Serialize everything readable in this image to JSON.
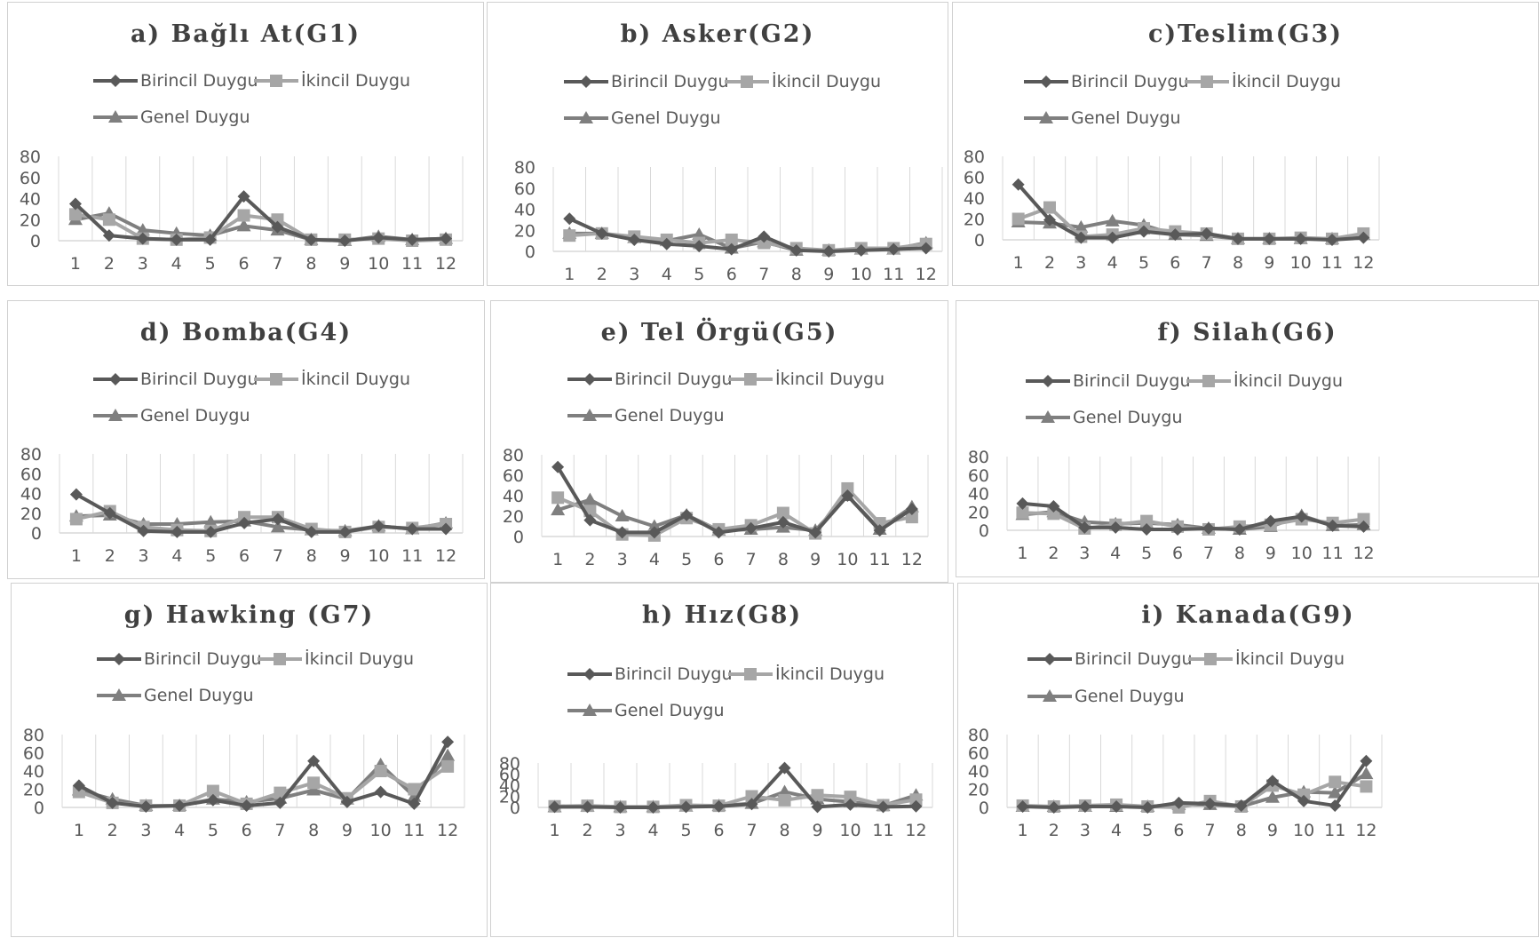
{
  "legend": {
    "primary": "Birincil Duygu",
    "secondary": "İkincil Duygu",
    "overall": "Genel Duygu"
  },
  "colors": {
    "primary": "#595959",
    "secondary": "#A6A6A6",
    "overall": "#7F7F7F",
    "grid": "#D9D9D9",
    "axis_text": "#595959"
  },
  "chart_data": [
    {
      "type": "line",
      "title": "a) Bağlı At(G1)",
      "categories": [
        "1",
        "2",
        "3",
        "4",
        "5",
        "6",
        "7",
        "8",
        "9",
        "10",
        "11",
        "12"
      ],
      "y_ticks": [
        "0",
        "20",
        "40",
        "60",
        "80"
      ],
      "ylim": [
        0,
        80
      ],
      "series": [
        {
          "name": "Birincil Duygu",
          "values": [
            35,
            5,
            2,
            1,
            1,
            42,
            13,
            1,
            0,
            3,
            1,
            2
          ]
        },
        {
          "name": "İkincil Duygu",
          "values": [
            25,
            20,
            2,
            1,
            3,
            24,
            20,
            1,
            1,
            2,
            0,
            1
          ]
        },
        {
          "name": "Genel Duygu",
          "values": [
            20,
            26,
            10,
            7,
            5,
            14,
            10,
            1,
            0,
            4,
            1,
            2
          ]
        }
      ]
    },
    {
      "type": "line",
      "title": "b) Asker(G2)",
      "categories": [
        "1",
        "2",
        "3",
        "4",
        "5",
        "6",
        "7",
        "8",
        "9",
        "10",
        "11",
        "12"
      ],
      "y_ticks": [
        "0",
        "20",
        "40",
        "60",
        "80"
      ],
      "ylim": [
        0,
        80
      ],
      "series": [
        {
          "name": "Birincil Duygu",
          "values": [
            31,
            17,
            11,
            7,
            5,
            2,
            14,
            1,
            0,
            1,
            2,
            3
          ]
        },
        {
          "name": "İkincil Duygu",
          "values": [
            15,
            17,
            14,
            11,
            8,
            11,
            8,
            3,
            1,
            3,
            3,
            7
          ]
        },
        {
          "name": "Genel Duygu",
          "values": [
            17,
            17,
            13,
            10,
            16,
            3,
            9,
            1,
            1,
            2,
            2,
            8
          ]
        }
      ]
    },
    {
      "type": "line",
      "title": "c)Teslim(G3)",
      "categories": [
        "1",
        "2",
        "3",
        "4",
        "5",
        "6",
        "7",
        "8",
        "9",
        "10",
        "11",
        "12"
      ],
      "y_ticks": [
        "0",
        "20",
        "40",
        "60",
        "80"
      ],
      "ylim": [
        0,
        80
      ],
      "series": [
        {
          "name": "Birincil Duygu",
          "values": [
            53,
            19,
            2,
            2,
            8,
            5,
            6,
            1,
            1,
            1,
            0,
            2
          ]
        },
        {
          "name": "İkincil Duygu",
          "values": [
            20,
            31,
            3,
            5,
            11,
            8,
            6,
            1,
            1,
            2,
            1,
            6
          ]
        },
        {
          "name": "Genel Duygu",
          "values": [
            17,
            16,
            12,
            18,
            14,
            5,
            4,
            1,
            1,
            1,
            1,
            5
          ]
        }
      ]
    },
    {
      "type": "line",
      "title": "d) Bomba(G4)",
      "categories": [
        "1",
        "2",
        "3",
        "4",
        "5",
        "6",
        "7",
        "8",
        "9",
        "10",
        "11",
        "12"
      ],
      "y_ticks": [
        "0",
        "20",
        "40",
        "60",
        "80"
      ],
      "ylim": [
        0,
        80
      ],
      "series": [
        {
          "name": "Birincil Duygu",
          "values": [
            39,
            20,
            2,
            1,
            1,
            10,
            14,
            1,
            1,
            7,
            4,
            4
          ]
        },
        {
          "name": "İkincil Duygu",
          "values": [
            14,
            22,
            6,
            3,
            2,
            16,
            16,
            4,
            1,
            6,
            5,
            9
          ]
        },
        {
          "name": "Genel Duygu",
          "values": [
            17,
            18,
            9,
            9,
            11,
            12,
            6,
            3,
            2,
            7,
            4,
            10
          ]
        }
      ]
    },
    {
      "type": "line",
      "title": "e) Tel Örgü(G5)",
      "categories": [
        "1",
        "2",
        "3",
        "4",
        "5",
        "6",
        "7",
        "8",
        "9",
        "10",
        "11",
        "12"
      ],
      "y_ticks": [
        "0",
        "20",
        "40",
        "60",
        "80"
      ],
      "ylim": [
        0,
        80
      ],
      "series": [
        {
          "name": "Birincil Duygu",
          "values": [
            68,
            16,
            4,
            4,
            21,
            4,
            8,
            14,
            4,
            40,
            6,
            27
          ]
        },
        {
          "name": "İkincil Duygu",
          "values": [
            38,
            25,
            2,
            1,
            18,
            7,
            11,
            23,
            3,
            47,
            13,
            19
          ]
        },
        {
          "name": "Genel Duygu",
          "values": [
            26,
            36,
            20,
            10,
            21,
            6,
            7,
            9,
            6,
            40,
            7,
            29
          ]
        }
      ]
    },
    {
      "type": "line",
      "title": "f) Silah(G6)",
      "categories": [
        "1",
        "2",
        "3",
        "4",
        "5",
        "6",
        "7",
        "8",
        "9",
        "10",
        "11",
        "12"
      ],
      "y_ticks": [
        "0",
        "20",
        "40",
        "60",
        "80"
      ],
      "ylim": [
        0,
        80
      ],
      "series": [
        {
          "name": "Birincil Duygu",
          "values": [
            29,
            26,
            3,
            3,
            1,
            1,
            2,
            1,
            10,
            15,
            5,
            4
          ]
        },
        {
          "name": "İkincil Duygu",
          "values": [
            19,
            18,
            2,
            6,
            10,
            4,
            1,
            4,
            6,
            12,
            8,
            12
          ]
        },
        {
          "name": "Genel Duygu",
          "values": [
            17,
            20,
            9,
            7,
            8,
            6,
            2,
            1,
            4,
            16,
            5,
            6
          ]
        }
      ]
    },
    {
      "type": "line",
      "title": "g) Hawking (G7)",
      "categories": [
        "1",
        "2",
        "3",
        "4",
        "5",
        "6",
        "7",
        "8",
        "9",
        "10",
        "11",
        "12"
      ],
      "y_ticks": [
        "0",
        "20",
        "40",
        "60",
        "80"
      ],
      "ylim": [
        0,
        80
      ],
      "series": [
        {
          "name": "Birincil Duygu",
          "values": [
            24,
            5,
            1,
            2,
            8,
            2,
            5,
            51,
            6,
            17,
            4,
            72
          ]
        },
        {
          "name": "İkincil Duygu",
          "values": [
            17,
            5,
            2,
            2,
            18,
            4,
            16,
            27,
            10,
            40,
            20,
            45
          ]
        },
        {
          "name": "Genel Duygu",
          "values": [
            19,
            9,
            2,
            2,
            9,
            6,
            10,
            19,
            9,
            47,
            12,
            57
          ]
        }
      ]
    },
    {
      "type": "line",
      "title": "h) Hız(G8)",
      "categories": [
        "1",
        "2",
        "3",
        "4",
        "5",
        "6",
        "7",
        "8",
        "9",
        "10",
        "11",
        "12"
      ],
      "y_ticks": [
        "0",
        "20",
        "40",
        "60",
        "80"
      ],
      "ylim": [
        0,
        80
      ],
      "series": [
        {
          "name": "Birincil Duygu",
          "values": [
            1,
            1,
            0,
            0,
            1,
            2,
            6,
            71,
            1,
            5,
            1,
            2
          ]
        },
        {
          "name": "İkincil Duygu",
          "values": [
            2,
            3,
            1,
            1,
            4,
            3,
            20,
            13,
            22,
            19,
            4,
            14
          ]
        },
        {
          "name": "Genel Duygu",
          "values": [
            1,
            2,
            1,
            1,
            2,
            3,
            7,
            28,
            15,
            10,
            3,
            22
          ]
        }
      ]
    },
    {
      "type": "line",
      "title": "i) Kanada(G9)",
      "categories": [
        "1",
        "2",
        "3",
        "4",
        "5",
        "6",
        "7",
        "8",
        "9",
        "10",
        "11",
        "12"
      ],
      "y_ticks": [
        "0",
        "20",
        "40",
        "60",
        "80"
      ],
      "ylim": [
        0,
        80
      ],
      "series": [
        {
          "name": "Birincil Duygu",
          "values": [
            1,
            0,
            1,
            1,
            0,
            5,
            4,
            2,
            29,
            7,
            2,
            51
          ]
        },
        {
          "name": "İkincil Duygu",
          "values": [
            2,
            1,
            2,
            3,
            1,
            0,
            7,
            1,
            24,
            14,
            28,
            23
          ]
        },
        {
          "name": "Genel Duygu",
          "values": [
            1,
            1,
            1,
            1,
            1,
            3,
            3,
            1,
            11,
            17,
            16,
            37
          ]
        }
      ]
    }
  ]
}
